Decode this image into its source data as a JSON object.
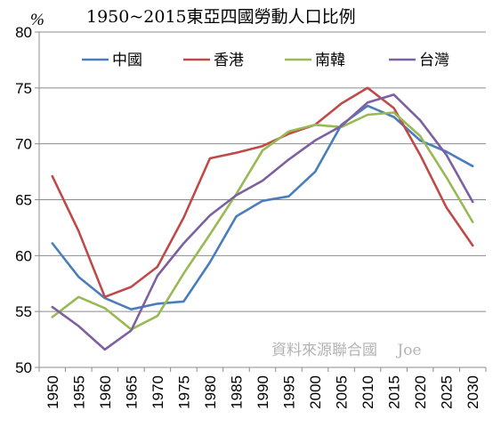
{
  "chart_data": {
    "type": "line",
    "title": "1950~2015東亞四國勞動人口比例",
    "unit_label": "%",
    "ylim": [
      50,
      80
    ],
    "yticks": [
      50,
      55,
      60,
      65,
      70,
      75,
      80
    ],
    "grid": "horizontal",
    "legend_position": "top",
    "x": [
      "1950",
      "1955",
      "1960",
      "1965",
      "1970",
      "1975",
      "1980",
      "1985",
      "1990",
      "1995",
      "2000",
      "2005",
      "2010",
      "2015",
      "2020",
      "2025",
      "2030"
    ],
    "series": [
      {
        "name": "中國",
        "color": "#4a7ebb",
        "values": [
          61.1,
          58.1,
          56.2,
          55.2,
          55.7,
          55.9,
          59.4,
          63.5,
          64.9,
          65.3,
          67.5,
          71.7,
          73.4,
          72.4,
          70.3,
          69.3,
          68.0
        ]
      },
      {
        "name": "香港",
        "color": "#be4b48",
        "values": [
          67.1,
          62.2,
          56.3,
          57.2,
          59.0,
          63.4,
          68.7,
          69.2,
          69.8,
          70.9,
          71.7,
          73.6,
          75.0,
          73.2,
          69.0,
          64.3,
          60.9
        ]
      },
      {
        "name": "南韓",
        "color": "#98b954",
        "values": [
          54.5,
          56.3,
          55.3,
          53.4,
          54.6,
          58.4,
          61.9,
          65.5,
          69.4,
          71.1,
          71.7,
          71.5,
          72.6,
          72.8,
          70.7,
          67.0,
          63.0
        ]
      },
      {
        "name": "台灣",
        "color": "#7d60a0",
        "values": [
          55.4,
          53.7,
          51.6,
          53.3,
          58.2,
          61.1,
          63.6,
          65.4,
          66.7,
          68.6,
          70.3,
          71.6,
          73.7,
          74.4,
          72.1,
          69.0,
          64.8
        ]
      }
    ],
    "annotation": "資料來源聯合國　 Joe"
  }
}
